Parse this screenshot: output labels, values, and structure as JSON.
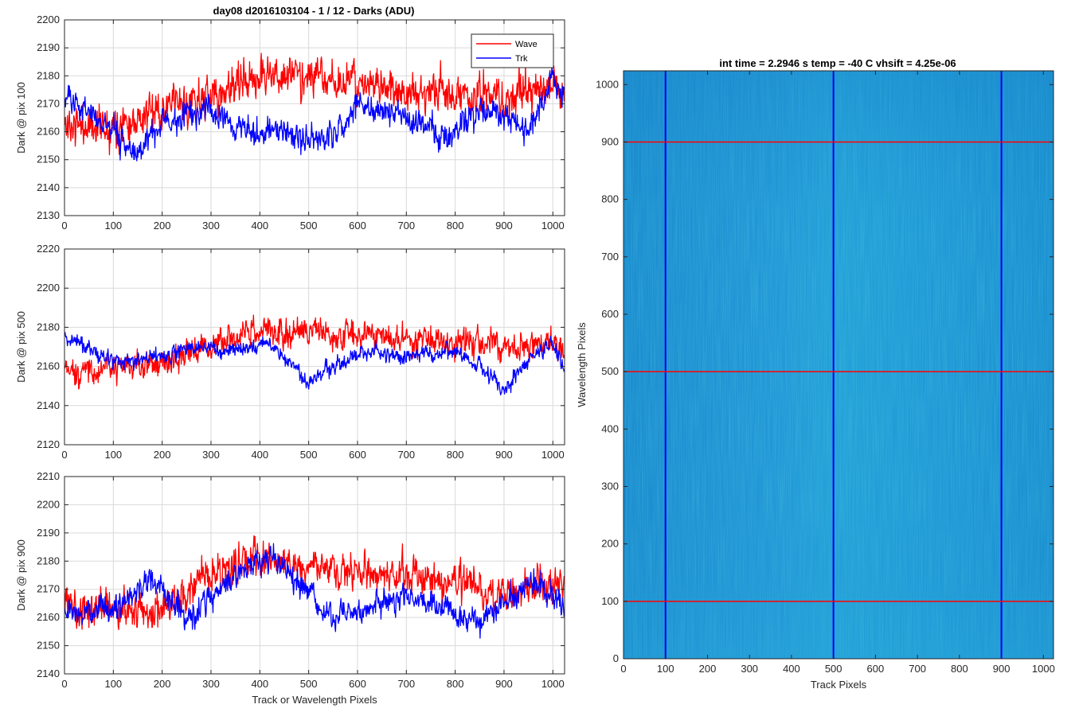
{
  "figure_title": "day08 d2016103104 - 1 / 12 - Darks (ADU)",
  "chart_data": [
    {
      "type": "line",
      "title": "day08 d2016103104 - 1 / 12 - Darks (ADU)",
      "ylabel": "Dark @ pix 100",
      "xlabel": "",
      "xlim": [
        0,
        1024
      ],
      "ylim": [
        2130,
        2200
      ],
      "xticks": [
        0,
        100,
        200,
        300,
        400,
        500,
        600,
        700,
        800,
        900,
        1000
      ],
      "yticks": [
        2130,
        2140,
        2150,
        2160,
        2170,
        2180,
        2190,
        2200
      ],
      "grid": true,
      "legend": "top-right",
      "series": [
        {
          "name": "Wave",
          "color": "#ff0000",
          "n": 1024,
          "seed": 11,
          "noise": 9,
          "trend_x": [
            0,
            100,
            200,
            300,
            400,
            500,
            600,
            700,
            800,
            900,
            1000,
            1024
          ],
          "trend_y": [
            2162,
            2163,
            2168,
            2172,
            2180,
            2180,
            2177,
            2175,
            2173,
            2172,
            2175,
            2176
          ]
        },
        {
          "name": "Trk",
          "color": "#0000ff",
          "n": 1024,
          "seed": 23,
          "noise": 6,
          "trend_x": [
            0,
            50,
            100,
            150,
            200,
            300,
            380,
            420,
            480,
            550,
            600,
            700,
            790,
            850,
            900,
            950,
            1000,
            1024
          ],
          "trend_y": [
            2172,
            2168,
            2160,
            2152,
            2163,
            2168,
            2160,
            2162,
            2158,
            2158,
            2170,
            2165,
            2158,
            2168,
            2165,
            2160,
            2178,
            2172
          ]
        }
      ]
    },
    {
      "type": "line",
      "ylabel": "Dark @ pix 500",
      "xlabel": "",
      "xlim": [
        0,
        1024
      ],
      "ylim": [
        2120,
        2220
      ],
      "xticks": [
        0,
        100,
        200,
        300,
        400,
        500,
        600,
        700,
        800,
        900,
        1000
      ],
      "yticks": [
        2120,
        2140,
        2160,
        2180,
        2200,
        2220
      ],
      "grid": true,
      "series": [
        {
          "name": "Wave",
          "color": "#ff0000",
          "n": 1024,
          "seed": 37,
          "noise": 9,
          "trend_x": [
            0,
            100,
            200,
            300,
            400,
            500,
            600,
            700,
            800,
            900,
            1000,
            1024
          ],
          "trend_y": [
            2158,
            2158,
            2162,
            2170,
            2180,
            2178,
            2176,
            2174,
            2172,
            2170,
            2172,
            2170
          ]
        },
        {
          "name": "Trk",
          "color": "#0000ff",
          "n": 1024,
          "seed": 41,
          "noise": 5,
          "trend_x": [
            0,
            30,
            100,
            200,
            270,
            350,
            420,
            500,
            560,
            620,
            700,
            800,
            850,
            900,
            950,
            1000,
            1024
          ],
          "trend_y": [
            2175,
            2172,
            2162,
            2165,
            2170,
            2168,
            2172,
            2152,
            2162,
            2168,
            2165,
            2168,
            2160,
            2148,
            2162,
            2172,
            2158
          ]
        }
      ]
    },
    {
      "type": "line",
      "ylabel": "Dark @ pix 900",
      "xlabel": "Track or Wavelength Pixels",
      "xlim": [
        0,
        1024
      ],
      "ylim": [
        2140,
        2210
      ],
      "xticks": [
        0,
        100,
        200,
        300,
        400,
        500,
        600,
        700,
        800,
        900,
        1000
      ],
      "yticks": [
        2140,
        2150,
        2160,
        2170,
        2180,
        2190,
        2200,
        2210
      ],
      "grid": true,
      "series": [
        {
          "name": "Wave",
          "color": "#ff0000",
          "n": 1024,
          "seed": 53,
          "noise": 8,
          "trend_x": [
            0,
            100,
            200,
            300,
            400,
            500,
            600,
            700,
            800,
            900,
            1000,
            1024
          ],
          "trend_y": [
            2165,
            2163,
            2162,
            2175,
            2182,
            2178,
            2176,
            2175,
            2170,
            2168,
            2172,
            2170
          ]
        },
        {
          "name": "Trk",
          "color": "#0000ff",
          "n": 1024,
          "seed": 67,
          "noise": 6,
          "trend_x": [
            0,
            100,
            180,
            250,
            300,
            350,
            420,
            500,
            550,
            600,
            700,
            800,
            850,
            950,
            1000,
            1024
          ],
          "trend_y": [
            2162,
            2162,
            2175,
            2158,
            2168,
            2175,
            2182,
            2168,
            2160,
            2162,
            2168,
            2162,
            2158,
            2172,
            2168,
            2160
          ]
        }
      ]
    },
    {
      "type": "heatmap",
      "title": "int time = 2.2946 s    temp = -40 C    vhsift = 4.25e-06",
      "xlabel": "Track Pixels",
      "ylabel": "Wavelength Pixels",
      "xlim": [
        0,
        1024
      ],
      "ylim": [
        0,
        1024
      ],
      "xticks": [
        0,
        100,
        200,
        300,
        400,
        500,
        600,
        700,
        800,
        900,
        1000
      ],
      "yticks": [
        0,
        100,
        200,
        300,
        400,
        500,
        600,
        700,
        800,
        900,
        1000
      ],
      "grid": false,
      "base_color": "#1e93d4",
      "vlines": {
        "color": "#0000ff",
        "x": [
          100,
          500,
          900
        ]
      },
      "hlines": {
        "color": "#ff0000",
        "y": [
          100,
          500,
          900
        ]
      }
    }
  ]
}
